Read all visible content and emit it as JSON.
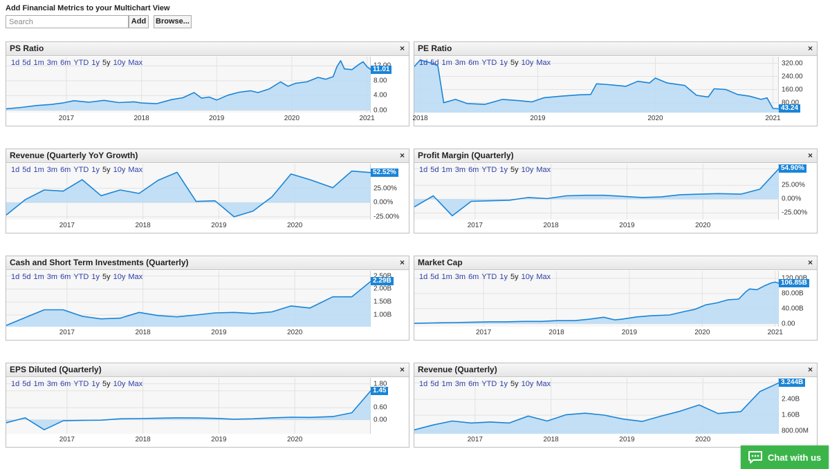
{
  "page_title": "Add Financial Metrics to your Multichart View",
  "search": {
    "placeholder": "Search"
  },
  "add_label": "Add",
  "browse_label": "Browse...",
  "close_symbol": "×",
  "ranges": [
    "1d",
    "5d",
    "1m",
    "3m",
    "6m",
    "YTD",
    "1y",
    "5y",
    "10y",
    "Max"
  ],
  "active_range": "5y",
  "colors": {
    "line": "#1a84d6",
    "fill": "#b9dbf5",
    "badge": "#1a84d6",
    "chat": "#3bb54a"
  },
  "chat": {
    "label": "Chat with us",
    "icon": "chat-bubble-icon"
  },
  "chart_data": [
    {
      "id": "ps-ratio",
      "type": "area",
      "title": "PS Ratio",
      "x_ticks": [
        "2017",
        "2018",
        "2019",
        "2020",
        "2021"
      ],
      "x_tick_pos": [
        2017,
        2018,
        2019,
        2020,
        2021
      ],
      "x_range": [
        2016.2,
        2021.05
      ],
      "y_ticks": [
        "12.00",
        "8.00",
        "4.00",
        "0.00"
      ],
      "y_tick_vals": [
        12,
        8,
        4,
        0
      ],
      "y_range": [
        -0.6,
        14.5
      ],
      "baseline": 0,
      "current": 11.01,
      "current_label": "11.01",
      "x": [
        2016.2,
        2016.4,
        2016.6,
        2016.8,
        2016.95,
        2017.1,
        2017.3,
        2017.5,
        2017.7,
        2017.9,
        2018.0,
        2018.2,
        2018.4,
        2018.55,
        2018.7,
        2018.8,
        2018.9,
        2019.0,
        2019.15,
        2019.3,
        2019.45,
        2019.55,
        2019.7,
        2019.85,
        2019.95,
        2020.05,
        2020.2,
        2020.35,
        2020.45,
        2020.55,
        2020.6,
        2020.65,
        2020.7,
        2020.8,
        2020.9,
        2020.95,
        2021.0,
        2021.05
      ],
      "y": [
        0.4,
        0.8,
        1.3,
        1.6,
        2.0,
        2.6,
        2.2,
        2.7,
        2.1,
        2.3,
        2.0,
        1.8,
        2.9,
        3.4,
        4.8,
        3.3,
        3.6,
        2.8,
        4.1,
        4.9,
        5.3,
        4.8,
        5.8,
        7.7,
        6.5,
        7.3,
        7.7,
        8.9,
        8.4,
        9.1,
        11.8,
        13.4,
        11.2,
        11.0,
        12.5,
        13.1,
        11.8,
        11.01
      ]
    },
    {
      "id": "pe-ratio",
      "type": "area",
      "title": "PE Ratio",
      "x_ticks": [
        "2018",
        "2019",
        "2020",
        "2021"
      ],
      "x_tick_pos": [
        2018,
        2019,
        2020,
        2021
      ],
      "x_range": [
        2017.95,
        2021.05
      ],
      "y_ticks": [
        "320.00",
        "240.00",
        "160.00",
        "80.00"
      ],
      "y_tick_vals": [
        320,
        240,
        160,
        80
      ],
      "y_range": [
        20,
        360
      ],
      "baseline": 20,
      "current": 43.24,
      "current_label": "43.24",
      "x": [
        2017.95,
        2018.0,
        2018.05,
        2018.1,
        2018.15,
        2018.2,
        2018.3,
        2018.4,
        2018.55,
        2018.7,
        2018.85,
        2018.95,
        2019.05,
        2019.2,
        2019.35,
        2019.45,
        2019.5,
        2019.6,
        2019.75,
        2019.85,
        2019.95,
        2020.0,
        2020.1,
        2020.25,
        2020.35,
        2020.45,
        2020.5,
        2020.6,
        2020.7,
        2020.8,
        2020.9,
        2020.95,
        2021.0,
        2021.05
      ],
      "y": [
        300,
        340,
        330,
        320,
        305,
        80,
        100,
        75,
        70,
        100,
        92,
        85,
        110,
        120,
        128,
        130,
        195,
        190,
        180,
        210,
        200,
        230,
        200,
        185,
        125,
        115,
        165,
        160,
        130,
        120,
        100,
        110,
        45,
        43.24
      ]
    },
    {
      "id": "revenue-growth",
      "type": "area",
      "title": "Revenue (Quarterly YoY Growth)",
      "x_ticks": [
        "2017",
        "2018",
        "2019",
        "2020"
      ],
      "x_tick_pos": [
        2017,
        2018,
        2019,
        2020
      ],
      "x_range": [
        2016.2,
        2021.0
      ],
      "y_ticks": [
        "25.00%",
        "0.00%",
        "-25.00%"
      ],
      "y_tick_vals": [
        25,
        0,
        -25
      ],
      "y_range": [
        -30,
        68
      ],
      "baseline": 0,
      "current": 52.52,
      "current_label": "52.52%",
      "x": [
        2016.2,
        2016.45,
        2016.7,
        2016.95,
        2017.2,
        2017.45,
        2017.7,
        2017.95,
        2018.2,
        2018.45,
        2018.7,
        2018.95,
        2019.2,
        2019.45,
        2019.7,
        2019.95,
        2020.2,
        2020.5,
        2020.75,
        2021.0
      ],
      "y": [
        -22,
        5,
        22,
        20,
        40,
        12,
        22,
        16,
        39,
        53,
        2,
        3,
        -25,
        -15,
        10,
        50,
        40,
        26,
        55,
        52.52
      ]
    },
    {
      "id": "profit-margin",
      "type": "area",
      "title": "Profit Margin (Quarterly)",
      "x_ticks": [
        "2017",
        "2018",
        "2019",
        "2020"
      ],
      "x_tick_pos": [
        2017,
        2018,
        2019,
        2020
      ],
      "x_range": [
        2016.2,
        2021.0
      ],
      "y_ticks": [
        "54.90%",
        "25.00%",
        "0.00%",
        "-25.00%"
      ],
      "y_tick_vals": [
        54.9,
        25,
        0,
        -25
      ],
      "y_range": [
        -37,
        64
      ],
      "baseline": 0,
      "current": 54.9,
      "current_label": "54.90%",
      "x": [
        2016.2,
        2016.45,
        2016.7,
        2016.95,
        2017.2,
        2017.45,
        2017.7,
        2017.95,
        2018.2,
        2018.45,
        2018.7,
        2018.95,
        2019.2,
        2019.45,
        2019.7,
        2019.95,
        2020.2,
        2020.5,
        2020.75,
        2021.0
      ],
      "y": [
        -14,
        6,
        -30,
        -4,
        -3,
        -2,
        3,
        1,
        6,
        7,
        7,
        5,
        3,
        4,
        8,
        9,
        10,
        9,
        18,
        54.9
      ]
    },
    {
      "id": "cash-investments",
      "type": "area",
      "title": "Cash and Short Term Investments (Quarterly)",
      "x_ticks": [
        "2017",
        "2018",
        "2019",
        "2020"
      ],
      "x_tick_pos": [
        2017,
        2018,
        2019,
        2020
      ],
      "x_range": [
        2016.2,
        2021.0
      ],
      "y_ticks": [
        "2.50B",
        "2.00B",
        "1.50B",
        "1.00B"
      ],
      "y_tick_vals": [
        2.5,
        2.0,
        1.5,
        1.0
      ],
      "y_range": [
        0.55,
        2.7
      ],
      "baseline": 0.55,
      "current": 2.29,
      "current_label": "2.29B",
      "x": [
        2016.2,
        2016.45,
        2016.7,
        2016.95,
        2017.2,
        2017.45,
        2017.7,
        2017.95,
        2018.2,
        2018.45,
        2018.7,
        2018.95,
        2019.2,
        2019.45,
        2019.7,
        2019.95,
        2020.2,
        2020.5,
        2020.75,
        2021.0
      ],
      "y": [
        0.6,
        0.9,
        1.2,
        1.2,
        0.95,
        0.85,
        0.88,
        1.1,
        0.98,
        0.93,
        1.0,
        1.08,
        1.1,
        1.06,
        1.12,
        1.35,
        1.27,
        1.7,
        1.7,
        2.29
      ]
    },
    {
      "id": "market-cap",
      "type": "area",
      "title": "Market Cap",
      "x_ticks": [
        "2017",
        "2018",
        "2019",
        "2020",
        "2021"
      ],
      "x_tick_pos": [
        2017,
        2018,
        2019,
        2020,
        2021
      ],
      "x_range": [
        2016.05,
        2021.05
      ],
      "y_ticks": [
        "120.00B",
        "80.00B",
        "40.00B",
        "0.00"
      ],
      "y_tick_vals": [
        120,
        80,
        40,
        0
      ],
      "y_range": [
        -8,
        140
      ],
      "baseline": 0,
      "current": 106.85,
      "current_label": "106.85B",
      "x": [
        2016.05,
        2016.3,
        2016.6,
        2016.85,
        2017.1,
        2017.3,
        2017.55,
        2017.8,
        2018.0,
        2018.25,
        2018.45,
        2018.65,
        2018.8,
        2018.9,
        2019.1,
        2019.3,
        2019.55,
        2019.75,
        2019.9,
        2020.05,
        2020.2,
        2020.35,
        2020.5,
        2020.6,
        2020.65,
        2020.75,
        2020.85,
        2020.95,
        2021.0,
        2021.05
      ],
      "y": [
        1,
        2,
        3,
        4,
        5,
        5,
        6,
        6,
        8,
        8,
        12,
        17,
        10,
        12,
        18,
        21,
        23,
        32,
        38,
        50,
        55,
        63,
        65,
        85,
        92,
        90,
        100,
        108,
        110,
        106.85
      ]
    },
    {
      "id": "eps-diluted",
      "type": "area",
      "title": "EPS Diluted (Quarterly)",
      "x_ticks": [
        "2017",
        "2018",
        "2019",
        "2020"
      ],
      "x_tick_pos": [
        2017,
        2018,
        2019,
        2020
      ],
      "x_range": [
        2016.2,
        2021.0
      ],
      "y_ticks": [
        "1.80",
        "1.45",
        "0.60",
        "0.00"
      ],
      "y_tick_vals": [
        1.8,
        1.45,
        0.6,
        0
      ],
      "y_range": [
        -0.7,
        2.1
      ],
      "baseline": 0,
      "current": 1.45,
      "current_label": "1.45",
      "x": [
        2016.2,
        2016.45,
        2016.7,
        2016.95,
        2017.2,
        2017.45,
        2017.7,
        2017.95,
        2018.2,
        2018.45,
        2018.7,
        2018.95,
        2019.2,
        2019.45,
        2019.7,
        2019.95,
        2020.2,
        2020.5,
        2020.75,
        2021.0
      ],
      "y": [
        -0.15,
        0.1,
        -0.5,
        -0.05,
        -0.03,
        -0.02,
        0.05,
        0.06,
        0.08,
        0.1,
        0.09,
        0.07,
        0.03,
        0.05,
        0.1,
        0.13,
        0.12,
        0.16,
        0.35,
        1.45
      ]
    },
    {
      "id": "revenue-quarterly",
      "type": "area",
      "title": "Revenue (Quarterly)",
      "x_ticks": [
        "2017",
        "2018",
        "2019",
        "2020"
      ],
      "x_tick_pos": [
        2017,
        2018,
        2019,
        2020
      ],
      "x_range": [
        2016.2,
        2021.0
      ],
      "y_ticks": [
        "3.244B",
        "2.40B",
        "1.60B",
        "800.00M"
      ],
      "y_tick_vals": [
        3.244,
        2.4,
        1.6,
        0.8
      ],
      "y_range": [
        0.65,
        3.5
      ],
      "baseline": 0.65,
      "current": 3.244,
      "current_label": "3.244B",
      "x": [
        2016.2,
        2016.45,
        2016.7,
        2016.95,
        2017.2,
        2017.45,
        2017.7,
        2017.95,
        2018.2,
        2018.45,
        2018.7,
        2018.95,
        2019.2,
        2019.45,
        2019.7,
        2019.95,
        2020.2,
        2020.5,
        2020.75,
        2021.0
      ],
      "y": [
        0.85,
        1.1,
        1.3,
        1.2,
        1.25,
        1.2,
        1.55,
        1.3,
        1.62,
        1.7,
        1.6,
        1.4,
        1.28,
        1.55,
        1.8,
        2.12,
        1.68,
        1.78,
        2.8,
        3.244
      ]
    }
  ]
}
